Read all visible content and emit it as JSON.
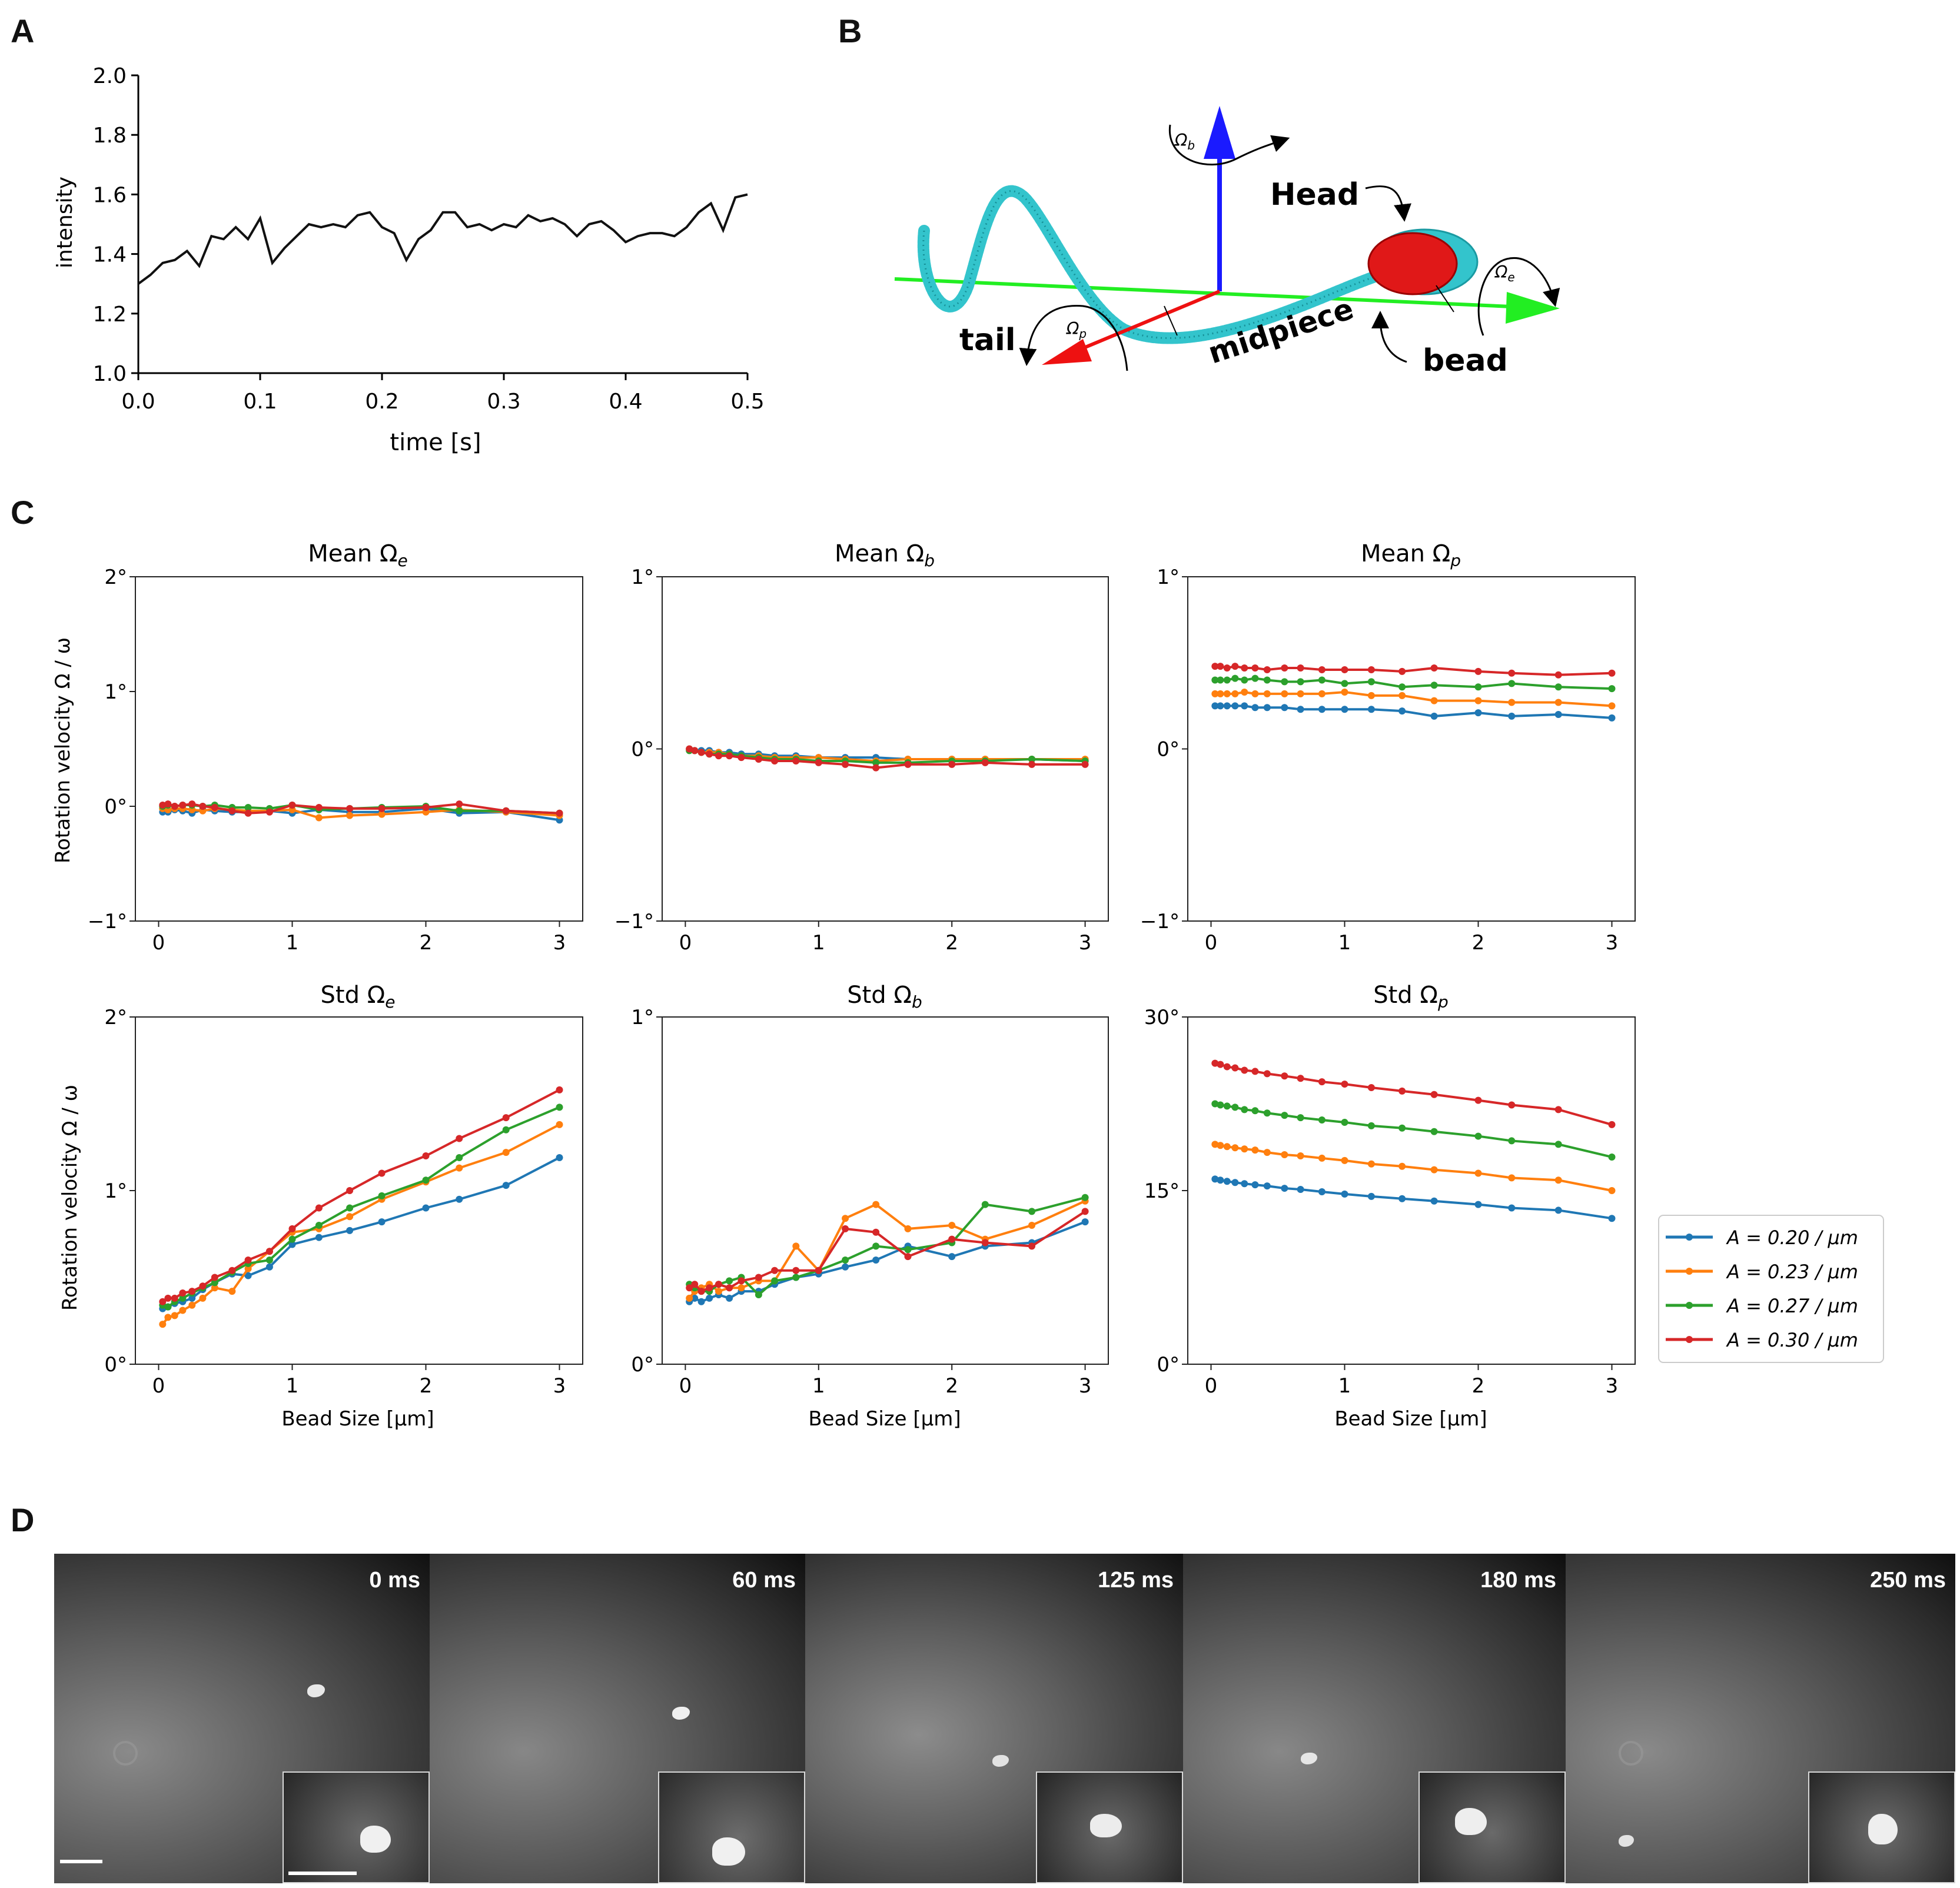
{
  "panels": {
    "a": {
      "letter": "A"
    },
    "b": {
      "letter": "B"
    },
    "c": {
      "letter": "C"
    },
    "d": {
      "letter": "D"
    }
  },
  "panel_a": {
    "ylabel": "intensity",
    "xlabel": "time [s]",
    "yticks": [
      "1.0",
      "1.2",
      "1.4",
      "1.6",
      "1.8",
      "2.0"
    ],
    "xticks": [
      "0.0",
      "0.1",
      "0.2",
      "0.3",
      "0.4",
      "0.5"
    ]
  },
  "panel_b": {
    "labels": {
      "head": "Head",
      "tail": "tail",
      "midpiece": "midpiece",
      "bead": "bead"
    },
    "axis_symbols": {
      "b": "Ω",
      "b_sub": "b",
      "e": "Ω",
      "e_sub": "e",
      "p": "Ω",
      "p_sub": "p"
    },
    "colors": {
      "b_axis": "#1a1aff",
      "e_axis": "#22ee22",
      "p_axis": "#ee1111",
      "flagellum": "#33c4cc",
      "head": "#e01818"
    }
  },
  "panel_c": {
    "ylabel": "Rotation velocity Ω / ω",
    "xlabel": "Bead Size [μm]",
    "titles": {
      "mean_e": {
        "pre": "Mean ",
        "sym": "Ω",
        "sub": "e"
      },
      "mean_b": {
        "pre": "Mean ",
        "sym": "Ω",
        "sub": "b"
      },
      "mean_p": {
        "pre": "Mean ",
        "sym": "Ω",
        "sub": "p"
      },
      "std_e": {
        "pre": "Std ",
        "sym": "Ω",
        "sub": "e"
      },
      "std_b": {
        "pre": "Std ",
        "sym": "Ω",
        "sub": "b"
      },
      "std_p": {
        "pre": "Std ",
        "sym": "Ω",
        "sub": "p"
      }
    },
    "legend": [
      {
        "label": "A = 0.20 / μm",
        "color": "#1f77b4"
      },
      {
        "label": "A = 0.23 / μm",
        "color": "#ff7f0e"
      },
      {
        "label": "A = 0.27 / μm",
        "color": "#2ca02c"
      },
      {
        "label": "A = 0.30 / μm",
        "color": "#d62728"
      }
    ]
  },
  "panel_d": {
    "frames": [
      "0 ms",
      "60 ms",
      "125 ms",
      "180 ms",
      "250 ms"
    ]
  },
  "chart_data": [
    {
      "id": "A",
      "type": "line",
      "title": "",
      "xlabel": "time [s]",
      "ylabel": "intensity",
      "xlim": [
        0,
        0.5
      ],
      "ylim": [
        1.0,
        2.0
      ],
      "x": [
        0.0,
        0.01,
        0.02,
        0.03,
        0.04,
        0.05,
        0.06,
        0.07,
        0.08,
        0.09,
        0.1,
        0.11,
        0.12,
        0.13,
        0.14,
        0.15,
        0.16,
        0.17,
        0.18,
        0.19,
        0.2,
        0.21,
        0.22,
        0.23,
        0.24,
        0.25,
        0.26,
        0.27,
        0.28,
        0.29,
        0.3,
        0.31,
        0.32,
        0.33,
        0.34,
        0.35,
        0.36,
        0.37,
        0.38,
        0.39,
        0.4,
        0.41,
        0.42,
        0.43,
        0.44,
        0.45,
        0.46,
        0.47,
        0.48,
        0.49,
        0.5
      ],
      "series": [
        {
          "values": [
            1.3,
            1.33,
            1.37,
            1.38,
            1.41,
            1.36,
            1.46,
            1.45,
            1.49,
            1.45,
            1.52,
            1.37,
            1.42,
            1.46,
            1.5,
            1.49,
            1.5,
            1.49,
            1.53,
            1.54,
            1.49,
            1.47,
            1.38,
            1.45,
            1.48,
            1.54,
            1.54,
            1.49,
            1.5,
            1.48,
            1.5,
            1.49,
            1.53,
            1.51,
            1.52,
            1.5,
            1.46,
            1.5,
            1.51,
            1.48,
            1.44,
            1.46,
            1.47,
            1.47,
            1.46,
            1.49,
            1.54,
            1.57,
            1.48,
            1.59,
            1.6
          ],
          "color": "#111111"
        }
      ]
    },
    {
      "id": "C-mean-e",
      "type": "line",
      "ylim": [
        -1,
        2
      ],
      "xlim": [
        0,
        3
      ],
      "yticks": [
        "−1°",
        "0°",
        "1°",
        "2°"
      ],
      "xticks": [
        "0",
        "1",
        "2",
        "3"
      ],
      "x": [
        0.03,
        0.07,
        0.12,
        0.18,
        0.25,
        0.33,
        0.42,
        0.55,
        0.67,
        0.83,
        1.0,
        1.2,
        1.43,
        1.67,
        2.0,
        2.25,
        2.6,
        3.0
      ],
      "series": [
        {
          "name": "A = 0.20 / μm",
          "values": [
            -0.05,
            -0.05,
            -0.03,
            -0.04,
            -0.06,
            -0.03,
            -0.04,
            -0.05,
            -0.05,
            -0.04,
            -0.06,
            -0.03,
            -0.05,
            -0.05,
            -0.02,
            -0.06,
            -0.05,
            -0.12
          ]
        },
        {
          "name": "A = 0.23 / μm",
          "values": [
            -0.02,
            -0.03,
            -0.02,
            -0.02,
            -0.03,
            -0.04,
            -0.02,
            -0.03,
            -0.04,
            -0.04,
            -0.03,
            -0.1,
            -0.08,
            -0.07,
            -0.05,
            -0.03,
            -0.05,
            -0.08
          ]
        },
        {
          "name": "A = 0.27 / μm",
          "values": [
            0.0,
            0.01,
            0.0,
            0.01,
            0.01,
            0.0,
            0.01,
            -0.01,
            -0.01,
            -0.02,
            0.01,
            -0.03,
            -0.02,
            -0.01,
            0.0,
            -0.04,
            -0.04,
            -0.06
          ]
        },
        {
          "name": "A = 0.30 / μm",
          "values": [
            0.01,
            0.02,
            0.0,
            0.01,
            0.02,
            0.0,
            -0.01,
            -0.04,
            -0.06,
            -0.05,
            0.01,
            -0.01,
            -0.02,
            -0.02,
            -0.01,
            0.02,
            -0.04,
            -0.06
          ]
        }
      ]
    },
    {
      "id": "C-mean-b",
      "type": "line",
      "ylim": [
        -1,
        1
      ],
      "xlim": [
        0,
        3
      ],
      "yticks": [
        "−1°",
        "0°",
        "1°"
      ],
      "xticks": [
        "0",
        "1",
        "2",
        "3"
      ],
      "x": [
        0.03,
        0.07,
        0.12,
        0.18,
        0.25,
        0.33,
        0.42,
        0.55,
        0.67,
        0.83,
        1.0,
        1.2,
        1.43,
        1.67,
        2.0,
        2.25,
        2.6,
        3.0
      ],
      "series": [
        {
          "name": "A = 0.20 / μm",
          "values": [
            0.0,
            -0.01,
            -0.01,
            -0.01,
            -0.02,
            -0.02,
            -0.03,
            -0.03,
            -0.04,
            -0.04,
            -0.05,
            -0.05,
            -0.05,
            -0.06,
            -0.06,
            -0.06,
            -0.06,
            -0.07
          ]
        },
        {
          "name": "A = 0.23 / μm",
          "values": [
            0.0,
            -0.01,
            -0.02,
            -0.02,
            -0.02,
            -0.03,
            -0.04,
            -0.04,
            -0.05,
            -0.05,
            -0.05,
            -0.06,
            -0.07,
            -0.06,
            -0.06,
            -0.06,
            -0.06,
            -0.06
          ]
        },
        {
          "name": "A = 0.27 / μm",
          "values": [
            -0.01,
            -0.01,
            -0.02,
            -0.03,
            -0.03,
            -0.03,
            -0.04,
            -0.05,
            -0.06,
            -0.06,
            -0.07,
            -0.07,
            -0.08,
            -0.08,
            -0.07,
            -0.07,
            -0.06,
            -0.07
          ]
        },
        {
          "name": "A = 0.30 / μm",
          "values": [
            0.0,
            -0.01,
            -0.02,
            -0.03,
            -0.04,
            -0.04,
            -0.05,
            -0.06,
            -0.07,
            -0.07,
            -0.08,
            -0.09,
            -0.11,
            -0.09,
            -0.09,
            -0.08,
            -0.09,
            -0.09
          ]
        }
      ]
    },
    {
      "id": "C-mean-p",
      "type": "line",
      "ylim": [
        -1,
        1
      ],
      "xlim": [
        0,
        3
      ],
      "yticks": [
        "−1°",
        "0°",
        "1°"
      ],
      "xticks": [
        "0",
        "1",
        "2",
        "3"
      ],
      "x": [
        0.03,
        0.07,
        0.12,
        0.18,
        0.25,
        0.33,
        0.42,
        0.55,
        0.67,
        0.83,
        1.0,
        1.2,
        1.43,
        1.67,
        2.0,
        2.25,
        2.6,
        3.0
      ],
      "series": [
        {
          "name": "A = 0.20 / μm",
          "values": [
            0.25,
            0.25,
            0.25,
            0.25,
            0.25,
            0.24,
            0.24,
            0.24,
            0.23,
            0.23,
            0.23,
            0.23,
            0.22,
            0.19,
            0.21,
            0.19,
            0.2,
            0.18
          ]
        },
        {
          "name": "A = 0.23 / μm",
          "values": [
            0.32,
            0.32,
            0.32,
            0.32,
            0.33,
            0.32,
            0.32,
            0.32,
            0.32,
            0.32,
            0.33,
            0.31,
            0.31,
            0.28,
            0.28,
            0.27,
            0.27,
            0.25
          ]
        },
        {
          "name": "A = 0.27 / μm",
          "values": [
            0.4,
            0.4,
            0.4,
            0.41,
            0.4,
            0.41,
            0.4,
            0.39,
            0.39,
            0.4,
            0.38,
            0.39,
            0.36,
            0.37,
            0.36,
            0.38,
            0.36,
            0.35
          ]
        },
        {
          "name": "A = 0.30 / μm",
          "values": [
            0.48,
            0.48,
            0.47,
            0.48,
            0.47,
            0.47,
            0.46,
            0.47,
            0.47,
            0.46,
            0.46,
            0.46,
            0.45,
            0.47,
            0.45,
            0.44,
            0.43,
            0.44
          ]
        }
      ]
    },
    {
      "id": "C-std-e",
      "type": "line",
      "ylim": [
        0,
        2
      ],
      "xlim": [
        0,
        3
      ],
      "yticks": [
        "0°",
        "1°",
        "2°"
      ],
      "xticks": [
        "0",
        "1",
        "2",
        "3"
      ],
      "x": [
        0.03,
        0.07,
        0.12,
        0.18,
        0.25,
        0.33,
        0.42,
        0.55,
        0.67,
        0.83,
        1.0,
        1.2,
        1.43,
        1.67,
        2.0,
        2.25,
        2.6,
        3.0
      ],
      "series": [
        {
          "name": "A = 0.20 / μm",
          "values": [
            0.32,
            0.33,
            0.35,
            0.36,
            0.38,
            0.43,
            0.47,
            0.52,
            0.51,
            0.56,
            0.69,
            0.73,
            0.77,
            0.82,
            0.9,
            0.95,
            1.03,
            1.19
          ]
        },
        {
          "name": "A = 0.23 / μm",
          "values": [
            0.23,
            0.27,
            0.28,
            0.31,
            0.34,
            0.38,
            0.44,
            0.42,
            0.55,
            0.65,
            0.76,
            0.78,
            0.85,
            0.95,
            1.05,
            1.13,
            1.22,
            1.38
          ]
        },
        {
          "name": "A = 0.27 / μm",
          "values": [
            0.34,
            0.33,
            0.36,
            0.38,
            0.41,
            0.44,
            0.47,
            0.53,
            0.58,
            0.6,
            0.72,
            0.8,
            0.9,
            0.97,
            1.06,
            1.19,
            1.35,
            1.48
          ]
        },
        {
          "name": "A = 0.30 / μm",
          "values": [
            0.36,
            0.38,
            0.38,
            0.41,
            0.42,
            0.45,
            0.5,
            0.54,
            0.6,
            0.65,
            0.78,
            0.9,
            1.0,
            1.1,
            1.2,
            1.3,
            1.42,
            1.58
          ]
        }
      ]
    },
    {
      "id": "C-std-b",
      "type": "line",
      "ylim": [
        0,
        1
      ],
      "xlim": [
        0,
        3
      ],
      "yticks": [
        "0°",
        "1°"
      ],
      "xticks": [
        "0",
        "1",
        "2",
        "3"
      ],
      "x": [
        0.03,
        0.07,
        0.12,
        0.18,
        0.25,
        0.33,
        0.42,
        0.55,
        0.67,
        0.83,
        1.0,
        1.2,
        1.43,
        1.67,
        2.0,
        2.25,
        2.6,
        3.0
      ],
      "series": [
        {
          "name": "A = 0.20 / μm",
          "values": [
            0.18,
            0.19,
            0.18,
            0.19,
            0.2,
            0.19,
            0.21,
            0.21,
            0.23,
            0.25,
            0.26,
            0.28,
            0.3,
            0.34,
            0.31,
            0.34,
            0.35,
            0.41
          ]
        },
        {
          "name": "A = 0.23 / μm",
          "values": [
            0.19,
            0.21,
            0.22,
            0.23,
            0.21,
            0.22,
            0.22,
            0.24,
            0.24,
            0.34,
            0.27,
            0.42,
            0.46,
            0.39,
            0.4,
            0.36,
            0.4,
            0.47
          ]
        },
        {
          "name": "A = 0.27 / μm",
          "values": [
            0.23,
            0.22,
            0.21,
            0.21,
            0.23,
            0.24,
            0.25,
            0.2,
            0.24,
            0.25,
            0.27,
            0.3,
            0.34,
            0.33,
            0.35,
            0.46,
            0.44,
            0.48
          ]
        },
        {
          "name": "A = 0.30 / μm",
          "values": [
            0.22,
            0.23,
            0.21,
            0.22,
            0.23,
            0.22,
            0.24,
            0.25,
            0.27,
            0.27,
            0.27,
            0.39,
            0.38,
            0.31,
            0.36,
            0.35,
            0.34,
            0.44
          ]
        }
      ]
    },
    {
      "id": "C-std-p",
      "type": "line",
      "ylim": [
        0,
        30
      ],
      "xlim": [
        0,
        3
      ],
      "yticks": [
        "0°",
        "15°",
        "30°"
      ],
      "xticks": [
        "0",
        "1",
        "2",
        "3"
      ],
      "x": [
        0.03,
        0.07,
        0.12,
        0.18,
        0.25,
        0.33,
        0.42,
        0.55,
        0.67,
        0.83,
        1.0,
        1.2,
        1.43,
        1.67,
        2.0,
        2.25,
        2.6,
        3.0
      ],
      "series": [
        {
          "name": "A = 0.20 / μm",
          "values": [
            16.0,
            15.9,
            15.8,
            15.7,
            15.6,
            15.5,
            15.4,
            15.2,
            15.1,
            14.9,
            14.7,
            14.5,
            14.3,
            14.1,
            13.8,
            13.5,
            13.3,
            12.6
          ]
        },
        {
          "name": "A = 0.23 / μm",
          "values": [
            19.0,
            18.9,
            18.8,
            18.7,
            18.6,
            18.5,
            18.3,
            18.1,
            18.0,
            17.8,
            17.6,
            17.3,
            17.1,
            16.8,
            16.5,
            16.1,
            15.9,
            15.0
          ]
        },
        {
          "name": "A = 0.27 / μm",
          "values": [
            22.5,
            22.4,
            22.3,
            22.2,
            22.0,
            21.9,
            21.7,
            21.5,
            21.3,
            21.1,
            20.9,
            20.6,
            20.4,
            20.1,
            19.7,
            19.3,
            19.0,
            17.9
          ]
        },
        {
          "name": "A = 0.30 / μm",
          "values": [
            26.0,
            25.9,
            25.7,
            25.6,
            25.4,
            25.3,
            25.1,
            24.9,
            24.7,
            24.4,
            24.2,
            23.9,
            23.6,
            23.3,
            22.8,
            22.4,
            22.0,
            20.7
          ]
        }
      ]
    }
  ]
}
